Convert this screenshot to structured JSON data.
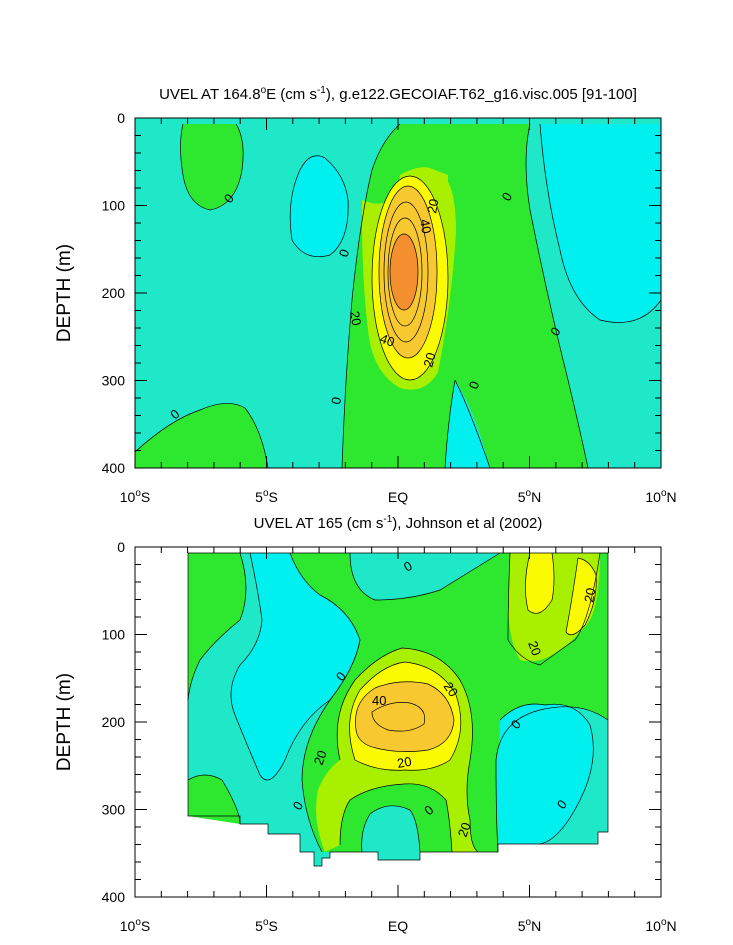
{
  "colors": {
    "cyan": "#00f0f0",
    "aqua": "#1ee8c8",
    "green": "#2ee830",
    "lime": "#a8f000",
    "yellow": "#fafa00",
    "gold": "#f8c830",
    "orange": "#f49030",
    "line": "#000000"
  },
  "chart_data": [
    {
      "type": "contour",
      "title_main": "UVEL AT 164.8",
      "title_deg": "o",
      "title_unit_a": "E (cm s",
      "title_exp": "-1",
      "title_rest": "), g.e122.GECOIAF.T62_g16.visc.005 [91-100]",
      "ylabel": "DEPTH (m)",
      "xlim": [
        -10,
        10
      ],
      "ylim": [
        0,
        400
      ],
      "y_ticks": [
        0,
        100,
        200,
        300,
        400
      ],
      "y_tick_labels": [
        "0",
        "100",
        "200",
        "300",
        "400"
      ],
      "x_ticks": [
        -10,
        -5,
        0,
        5,
        10
      ],
      "x_tick_labels": [
        {
          "num": "10",
          "deg": "o",
          "hem": "S"
        },
        {
          "num": "5",
          "deg": "o",
          "hem": "S"
        },
        {
          "num": "EQ",
          "deg": "",
          "hem": ""
        },
        {
          "num": "5",
          "deg": "o",
          "hem": "N"
        },
        {
          "num": "10",
          "deg": "o",
          "hem": "N"
        }
      ],
      "contour_levels": [
        -10,
        0,
        10,
        20,
        30,
        40,
        50
      ],
      "core_max_approx": 60,
      "core_latitude": 0,
      "core_depth": 175,
      "contour_labels": [
        "0",
        "0",
        "0",
        "0",
        "0",
        "0",
        "0",
        "20",
        "20",
        "20",
        "40",
        "40"
      ]
    },
    {
      "type": "contour",
      "title_main": "UVEL AT 165 (cm s",
      "title_exp": "-1",
      "title_rest": "), Johnson et al (2002)",
      "ylabel": "DEPTH (m)",
      "xlim": [
        -10,
        10
      ],
      "ylim": [
        0,
        400
      ],
      "y_ticks": [
        0,
        100,
        200,
        300,
        400
      ],
      "y_tick_labels": [
        "0",
        "100",
        "200",
        "300",
        "400"
      ],
      "x_ticks": [
        -10,
        -5,
        0,
        5,
        10
      ],
      "x_tick_labels": [
        {
          "num": "10",
          "deg": "o",
          "hem": "S"
        },
        {
          "num": "5",
          "deg": "o",
          "hem": "S"
        },
        {
          "num": "EQ",
          "deg": "",
          "hem": ""
        },
        {
          "num": "5",
          "deg": "o",
          "hem": "N"
        },
        {
          "num": "10",
          "deg": "o",
          "hem": "N"
        }
      ],
      "data_extent_lat": [
        -8,
        8
      ],
      "contour_levels": [
        -10,
        0,
        10,
        20,
        30,
        40
      ],
      "core_max_approx": 45,
      "core_latitude": -0.5,
      "core_depth": 185,
      "contour_labels": [
        "0",
        "0",
        "0",
        "0",
        "0",
        "0",
        "20",
        "20",
        "20",
        "20",
        "20",
        "20",
        "40"
      ]
    }
  ]
}
